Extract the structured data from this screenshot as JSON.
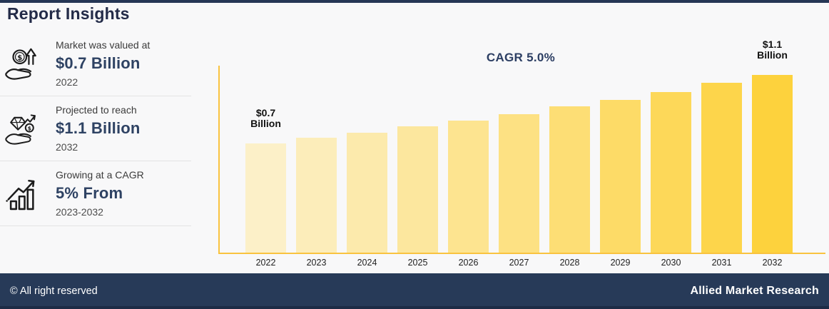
{
  "page": {
    "title": "Report Insights"
  },
  "colors": {
    "navy_bar": "#253655",
    "heading_navy": "#232b48",
    "value_navy": "#2e4263",
    "axis_yellow": "#f9c33f",
    "background": "#f8f8f9"
  },
  "stats": [
    {
      "icon": "hand-coin-growth-icon",
      "label": "Market was valued at",
      "value": "$0.7 Billion",
      "period": "2022"
    },
    {
      "icon": "hand-diamond-icon",
      "label": "Projected to reach",
      "value": "$1.1 Billion",
      "period": "2032"
    },
    {
      "icon": "growth-bars-icon",
      "label": "Growing at a CAGR",
      "value": "5% From",
      "period": "2023-2032"
    }
  ],
  "chart_data": {
    "type": "bar",
    "title": "CAGR 5.0%",
    "categories": [
      "2022",
      "2023",
      "2024",
      "2025",
      "2026",
      "2027",
      "2028",
      "2029",
      "2030",
      "2031",
      "2032"
    ],
    "values": [
      0.7,
      0.74,
      0.77,
      0.81,
      0.85,
      0.89,
      0.94,
      0.98,
      1.03,
      1.09,
      1.14
    ],
    "ylim": [
      0,
      1.2
    ],
    "grid": false,
    "legend": null,
    "xlabel": "",
    "ylabel": "",
    "axis_color": "#f9c33f",
    "bar_colors": [
      "#FCF0C8",
      "#FCEDBA",
      "#FCEAAC",
      "#FCE79E",
      "#FDE490",
      "#FDE183",
      "#FDDE75",
      "#FDDB67",
      "#FDD859",
      "#FDD54B",
      "#FDD23D"
    ],
    "annotations": [
      {
        "index": 0,
        "lines": [
          "$0.7",
          "Billion"
        ]
      },
      {
        "index": 10,
        "lines": [
          "$1.1",
          "Billion"
        ]
      }
    ]
  },
  "footer": {
    "copyright": "© All right reserved",
    "brand": "Allied Market Research"
  }
}
